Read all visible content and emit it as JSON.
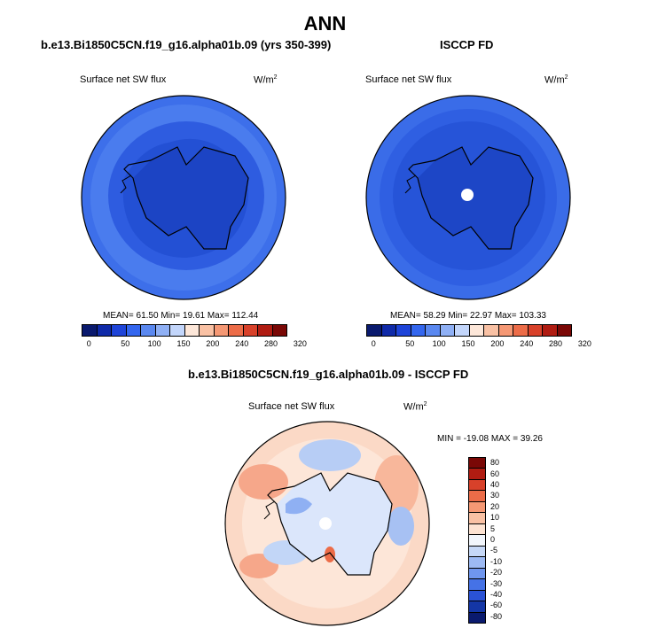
{
  "main_title": "ANN",
  "panels": [
    {
      "title": "b.e13.Bi1850C5CN.f19_g16.alpha01b.09 (yrs 350-399)",
      "variable": "Surface net SW flux",
      "units": "W/m",
      "units_sup": "2",
      "stats": "MEAN=  61.50   Min=  19.61   Max=  112.44",
      "mean": 61.5,
      "min": 19.61,
      "max": 112.44
    },
    {
      "title": "ISCCP FD",
      "variable": "Surface net SW flux",
      "units": "W/m",
      "units_sup": "2",
      "stats": "MEAN=  58.29   Min=  22.97   Max=  103.33",
      "mean": 58.29,
      "min": 22.97,
      "max": 103.33
    }
  ],
  "diff_panel": {
    "title": "b.e13.Bi1850C5CN.f19_g16.alpha01b.09 - ISCCP FD",
    "variable": "Surface net SW flux",
    "units": "W/m",
    "units_sup": "2",
    "stats": "MIN = -19.08  MAX =   39.26",
    "min": -19.08,
    "max": 39.26
  },
  "colorbar_abs": {
    "labels": [
      "0",
      "50",
      "100",
      "150",
      "200",
      "240",
      "280",
      "320"
    ],
    "colors": [
      "#0a1a6e",
      "#0f2aa8",
      "#1e44d8",
      "#3366ee",
      "#5a88f0",
      "#8fb0f5",
      "#c3d6fb",
      "#fde7d9",
      "#f9c1a4",
      "#f59874",
      "#ec6c48",
      "#d8412a",
      "#b01c12",
      "#7a0806"
    ]
  },
  "colorbar_diff": {
    "labels": [
      "80",
      "60",
      "40",
      "30",
      "20",
      "10",
      "5",
      "0",
      "-5",
      "-10",
      "-20",
      "-30",
      "-40",
      "-60",
      "-80"
    ],
    "colors": [
      "#7a0806",
      "#b01c12",
      "#d8412a",
      "#ec6c48",
      "#f59874",
      "#f9c1a4",
      "#fde3d2",
      "#f2f6fc",
      "#c6d8f7",
      "#9dbaf4",
      "#6f96ef",
      "#4572e6",
      "#2a52d6",
      "#1436a6",
      "#0a1a6e"
    ]
  }
}
